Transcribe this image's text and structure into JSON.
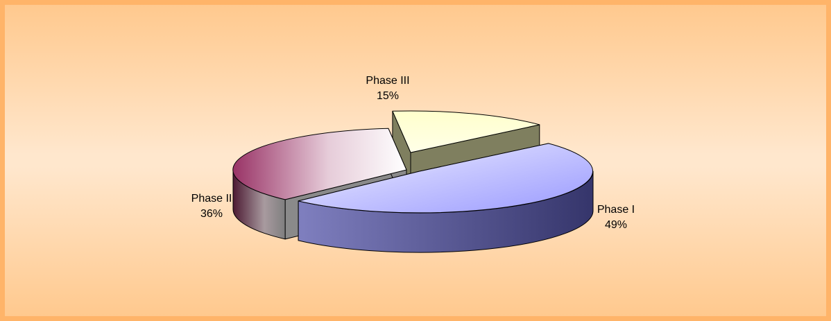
{
  "chart_data": {
    "type": "pie",
    "style": "3d-exploded",
    "title": "",
    "slices": [
      {
        "label": "Phase I",
        "value": 49,
        "value_label": "49%",
        "color": "#a8a8ff"
      },
      {
        "label": "Phase II",
        "value": 36,
        "value_label": "36%",
        "color": "#993366"
      },
      {
        "label": "Phase III",
        "value": 15,
        "value_label": "15%",
        "color": "#ffffcc"
      }
    ],
    "legend": "none",
    "background_color": "#ffe7cd",
    "border_color": "#ffb469"
  }
}
